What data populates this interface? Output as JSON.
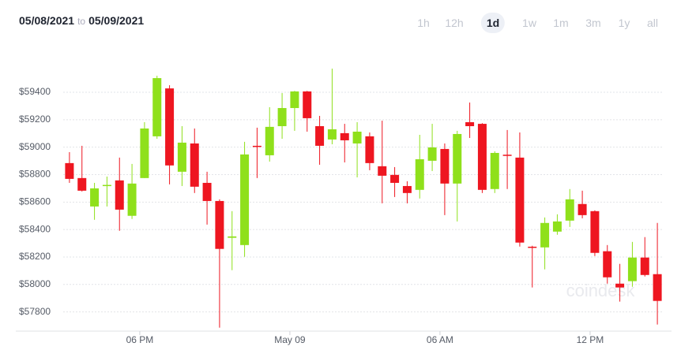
{
  "header": {
    "from": "05/08/2021",
    "to_word": "to",
    "to": "05/09/2021",
    "ranges": [
      "1h",
      "12h",
      "1d",
      "1w",
      "1m",
      "3m",
      "1y",
      "all"
    ],
    "selected_range": 2
  },
  "chart_data": {
    "type": "candlestick",
    "watermark": "coindesk",
    "up_color": "#8fe01b",
    "down_color": "#ee1620",
    "grid": true,
    "categories": [
      null,
      null,
      null,
      null,
      null,
      null,
      "06 PM",
      null,
      null,
      null,
      null,
      null,
      null,
      null,
      null,
      null,
      null,
      null,
      "May 09",
      null,
      null,
      null,
      null,
      null,
      null,
      null,
      null,
      null,
      null,
      null,
      "06 AM",
      null,
      null,
      null,
      null,
      null,
      null,
      null,
      null,
      null,
      null,
      null,
      "12 PM",
      null,
      null,
      null,
      null,
      null
    ],
    "open": [
      58884,
      58775,
      58568,
      58720,
      58758,
      58500,
      58775,
      59079,
      59428,
      58821,
      59027,
      58740,
      58608,
      58340,
      58287,
      59010,
      58941,
      59153,
      59285,
      59406,
      59153,
      59056,
      59102,
      59027,
      59079,
      58861,
      58798,
      58717,
      58689,
      58901,
      58987,
      58735,
      59182,
      59170,
      58695,
      58945,
      58924,
      58275,
      58270,
      58385,
      58465,
      58586,
      58534,
      58242,
      58006,
      58024,
      58196,
      58075
    ],
    "high": [
      58964,
      59010,
      58740,
      58786,
      58924,
      58878,
      59182,
      59520,
      59451,
      59153,
      59136,
      58821,
      58620,
      58534,
      59039,
      59142,
      59291,
      59394,
      59410,
      59410,
      59228,
      59572,
      59170,
      59182,
      59107,
      59193,
      58855,
      58752,
      59090,
      59170,
      59027,
      59119,
      59325,
      59175,
      58970,
      59125,
      59107,
      58282,
      58488,
      58511,
      58695,
      58683,
      58540,
      58287,
      58150,
      58310,
      58345,
      58448
    ],
    "low": [
      58740,
      58677,
      58471,
      58568,
      58391,
      58477,
      58775,
      59061,
      58729,
      58717,
      58666,
      58436,
      57685,
      58104,
      58201,
      58775,
      58895,
      59061,
      59119,
      59113,
      58872,
      59021,
      58889,
      58780,
      58832,
      58591,
      58637,
      58591,
      58626,
      58826,
      58505,
      58459,
      59067,
      58666,
      58666,
      58695,
      58276,
      57978,
      58110,
      58362,
      58419,
      58482,
      58207,
      58006,
      57875,
      57983,
      58058,
      57708
    ],
    "close": [
      58769,
      58683,
      58700,
      58725,
      58545,
      58735,
      59136,
      59503,
      58867,
      59033,
      58712,
      58608,
      58259,
      58350,
      58947,
      59005,
      59148,
      59285,
      59406,
      59211,
      59010,
      59130,
      59050,
      59113,
      58884,
      58792,
      58740,
      58666,
      58912,
      58998,
      58735,
      59096,
      59153,
      58689,
      58958,
      58940,
      58305,
      58270,
      58448,
      58459,
      58620,
      58505,
      58230,
      58052,
      57978,
      58196,
      58069,
      57880
    ],
    "ylim": [
      57660,
      59670
    ],
    "yticks": [
      {
        "value": 57800,
        "label": "$57800"
      },
      {
        "value": 58000,
        "label": "$58000"
      },
      {
        "value": 58200,
        "label": "$58200"
      },
      {
        "value": 58400,
        "label": "$58400"
      },
      {
        "value": 58600,
        "label": "$58600"
      },
      {
        "value": 58800,
        "label": "$58800"
      },
      {
        "value": 59000,
        "label": "$59000"
      },
      {
        "value": 59200,
        "label": "$59200"
      },
      {
        "value": 59400,
        "label": "$59400"
      }
    ]
  }
}
